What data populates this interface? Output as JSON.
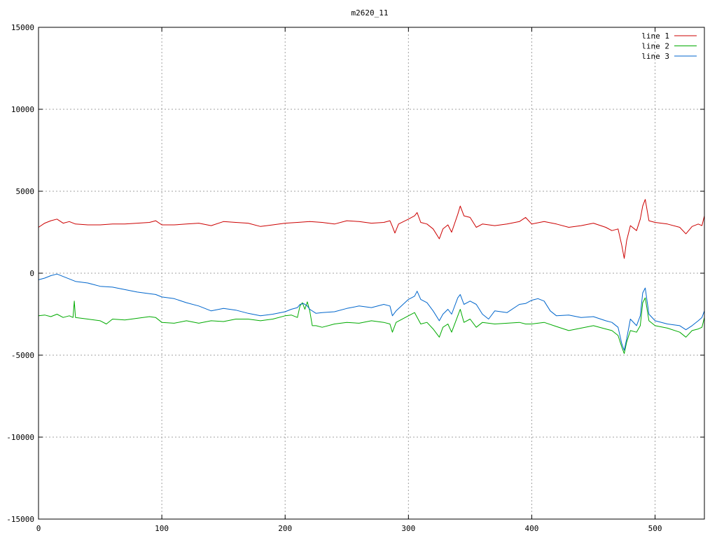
{
  "chart_data": {
    "type": "line",
    "title": "m2620_11",
    "xlabel": "",
    "ylabel": "",
    "xlim": [
      0,
      540
    ],
    "ylim": [
      -15000,
      15000
    ],
    "xticks": [
      0,
      100,
      200,
      300,
      400,
      500
    ],
    "yticks": [
      -15000,
      -10000,
      -5000,
      0,
      5000,
      10000,
      15000
    ],
    "grid": true,
    "legend_position": "top-right",
    "series": [
      {
        "name": "line 1",
        "color": "#cc0000",
        "points": [
          [
            0,
            2800
          ],
          [
            5,
            3050
          ],
          [
            10,
            3200
          ],
          [
            15,
            3300
          ],
          [
            20,
            3050
          ],
          [
            25,
            3150
          ],
          [
            30,
            3000
          ],
          [
            40,
            2950
          ],
          [
            50,
            2950
          ],
          [
            60,
            3000
          ],
          [
            70,
            3000
          ],
          [
            80,
            3050
          ],
          [
            90,
            3100
          ],
          [
            95,
            3200
          ],
          [
            100,
            2950
          ],
          [
            110,
            2950
          ],
          [
            120,
            3000
          ],
          [
            130,
            3050
          ],
          [
            140,
            2900
          ],
          [
            150,
            3150
          ],
          [
            160,
            3100
          ],
          [
            170,
            3050
          ],
          [
            180,
            2850
          ],
          [
            190,
            2950
          ],
          [
            200,
            3050
          ],
          [
            210,
            3100
          ],
          [
            220,
            3150
          ],
          [
            230,
            3100
          ],
          [
            240,
            3000
          ],
          [
            250,
            3200
          ],
          [
            260,
            3150
          ],
          [
            270,
            3050
          ],
          [
            280,
            3100
          ],
          [
            285,
            3200
          ],
          [
            287,
            2850
          ],
          [
            289,
            2450
          ],
          [
            292,
            3000
          ],
          [
            300,
            3300
          ],
          [
            305,
            3500
          ],
          [
            307,
            3700
          ],
          [
            310,
            3100
          ],
          [
            315,
            3000
          ],
          [
            320,
            2700
          ],
          [
            325,
            2100
          ],
          [
            328,
            2700
          ],
          [
            332,
            2950
          ],
          [
            335,
            2500
          ],
          [
            340,
            3600
          ],
          [
            342,
            4100
          ],
          [
            345,
            3500
          ],
          [
            350,
            3400
          ],
          [
            355,
            2800
          ],
          [
            360,
            3000
          ],
          [
            370,
            2900
          ],
          [
            380,
            3000
          ],
          [
            390,
            3150
          ],
          [
            395,
            3400
          ],
          [
            400,
            3000
          ],
          [
            410,
            3150
          ],
          [
            420,
            3000
          ],
          [
            430,
            2800
          ],
          [
            440,
            2900
          ],
          [
            450,
            3050
          ],
          [
            460,
            2800
          ],
          [
            465,
            2600
          ],
          [
            470,
            2700
          ],
          [
            473,
            1700
          ],
          [
            475,
            900
          ],
          [
            477,
            2000
          ],
          [
            480,
            2900
          ],
          [
            485,
            2600
          ],
          [
            488,
            3300
          ],
          [
            490,
            4100
          ],
          [
            492,
            4500
          ],
          [
            495,
            3200
          ],
          [
            500,
            3100
          ],
          [
            510,
            3000
          ],
          [
            520,
            2800
          ],
          [
            525,
            2400
          ],
          [
            530,
            2850
          ],
          [
            535,
            3000
          ],
          [
            538,
            2900
          ],
          [
            540,
            3500
          ]
        ]
      },
      {
        "name": "line 2",
        "color": "#00aa00",
        "points": [
          [
            0,
            -2600
          ],
          [
            5,
            -2550
          ],
          [
            10,
            -2650
          ],
          [
            15,
            -2500
          ],
          [
            20,
            -2700
          ],
          [
            25,
            -2600
          ],
          [
            28,
            -2700
          ],
          [
            29,
            -1700
          ],
          [
            30,
            -2700
          ],
          [
            40,
            -2800
          ],
          [
            50,
            -2900
          ],
          [
            55,
            -3100
          ],
          [
            60,
            -2800
          ],
          [
            70,
            -2850
          ],
          [
            80,
            -2750
          ],
          [
            90,
            -2650
          ],
          [
            95,
            -2700
          ],
          [
            100,
            -3000
          ],
          [
            110,
            -3050
          ],
          [
            120,
            -2900
          ],
          [
            130,
            -3050
          ],
          [
            140,
            -2900
          ],
          [
            150,
            -2950
          ],
          [
            160,
            -2800
          ],
          [
            170,
            -2800
          ],
          [
            180,
            -2900
          ],
          [
            190,
            -2800
          ],
          [
            200,
            -2600
          ],
          [
            205,
            -2550
          ],
          [
            210,
            -2700
          ],
          [
            212,
            -2000
          ],
          [
            214,
            -1800
          ],
          [
            216,
            -2200
          ],
          [
            218,
            -1750
          ],
          [
            220,
            -2300
          ],
          [
            222,
            -3200
          ],
          [
            225,
            -3200
          ],
          [
            230,
            -3300
          ],
          [
            240,
            -3100
          ],
          [
            250,
            -3000
          ],
          [
            260,
            -3050
          ],
          [
            270,
            -2900
          ],
          [
            280,
            -3000
          ],
          [
            285,
            -3100
          ],
          [
            287,
            -3600
          ],
          [
            290,
            -3000
          ],
          [
            300,
            -2600
          ],
          [
            305,
            -2400
          ],
          [
            310,
            -3100
          ],
          [
            315,
            -3000
          ],
          [
            320,
            -3400
          ],
          [
            325,
            -3900
          ],
          [
            328,
            -3300
          ],
          [
            332,
            -3100
          ],
          [
            335,
            -3600
          ],
          [
            340,
            -2600
          ],
          [
            342,
            -2200
          ],
          [
            345,
            -3000
          ],
          [
            350,
            -2800
          ],
          [
            355,
            -3300
          ],
          [
            360,
            -3000
          ],
          [
            370,
            -3100
          ],
          [
            380,
            -3050
          ],
          [
            390,
            -3000
          ],
          [
            395,
            -3100
          ],
          [
            400,
            -3100
          ],
          [
            410,
            -3000
          ],
          [
            420,
            -3250
          ],
          [
            430,
            -3500
          ],
          [
            440,
            -3350
          ],
          [
            450,
            -3200
          ],
          [
            460,
            -3400
          ],
          [
            465,
            -3500
          ],
          [
            470,
            -3800
          ],
          [
            473,
            -4500
          ],
          [
            475,
            -4900
          ],
          [
            477,
            -4200
          ],
          [
            480,
            -3500
          ],
          [
            485,
            -3600
          ],
          [
            488,
            -3200
          ],
          [
            490,
            -1800
          ],
          [
            492,
            -1500
          ],
          [
            495,
            -2900
          ],
          [
            500,
            -3200
          ],
          [
            510,
            -3350
          ],
          [
            520,
            -3600
          ],
          [
            525,
            -3900
          ],
          [
            530,
            -3500
          ],
          [
            535,
            -3400
          ],
          [
            538,
            -3300
          ],
          [
            540,
            -2700
          ]
        ]
      },
      {
        "name": "line 3",
        "color": "#0066cc",
        "points": [
          [
            0,
            -400
          ],
          [
            5,
            -300
          ],
          [
            10,
            -150
          ],
          [
            15,
            -50
          ],
          [
            20,
            -200
          ],
          [
            25,
            -350
          ],
          [
            30,
            -500
          ],
          [
            40,
            -600
          ],
          [
            50,
            -800
          ],
          [
            60,
            -850
          ],
          [
            70,
            -1000
          ],
          [
            80,
            -1150
          ],
          [
            90,
            -1250
          ],
          [
            95,
            -1300
          ],
          [
            100,
            -1450
          ],
          [
            110,
            -1550
          ],
          [
            120,
            -1800
          ],
          [
            130,
            -2000
          ],
          [
            140,
            -2300
          ],
          [
            150,
            -2150
          ],
          [
            160,
            -2250
          ],
          [
            170,
            -2450
          ],
          [
            180,
            -2600
          ],
          [
            190,
            -2500
          ],
          [
            200,
            -2350
          ],
          [
            205,
            -2200
          ],
          [
            210,
            -2100
          ],
          [
            212,
            -1900
          ],
          [
            215,
            -1850
          ],
          [
            218,
            -2000
          ],
          [
            220,
            -2200
          ],
          [
            225,
            -2450
          ],
          [
            230,
            -2400
          ],
          [
            240,
            -2350
          ],
          [
            250,
            -2150
          ],
          [
            260,
            -2000
          ],
          [
            270,
            -2100
          ],
          [
            280,
            -1900
          ],
          [
            285,
            -2000
          ],
          [
            287,
            -2600
          ],
          [
            290,
            -2300
          ],
          [
            300,
            -1600
          ],
          [
            305,
            -1400
          ],
          [
            307,
            -1100
          ],
          [
            310,
            -1600
          ],
          [
            315,
            -1800
          ],
          [
            320,
            -2300
          ],
          [
            325,
            -2900
          ],
          [
            328,
            -2500
          ],
          [
            332,
            -2200
          ],
          [
            335,
            -2500
          ],
          [
            340,
            -1500
          ],
          [
            342,
            -1300
          ],
          [
            345,
            -1900
          ],
          [
            350,
            -1700
          ],
          [
            355,
            -1900
          ],
          [
            360,
            -2500
          ],
          [
            365,
            -2800
          ],
          [
            370,
            -2300
          ],
          [
            380,
            -2400
          ],
          [
            390,
            -1900
          ],
          [
            395,
            -1850
          ],
          [
            400,
            -1650
          ],
          [
            405,
            -1550
          ],
          [
            410,
            -1700
          ],
          [
            415,
            -2300
          ],
          [
            420,
            -2600
          ],
          [
            430,
            -2550
          ],
          [
            440,
            -2700
          ],
          [
            450,
            -2650
          ],
          [
            460,
            -2900
          ],
          [
            465,
            -3000
          ],
          [
            470,
            -3300
          ],
          [
            473,
            -4300
          ],
          [
            475,
            -4700
          ],
          [
            477,
            -4000
          ],
          [
            480,
            -2800
          ],
          [
            485,
            -3200
          ],
          [
            488,
            -2600
          ],
          [
            490,
            -1200
          ],
          [
            492,
            -900
          ],
          [
            495,
            -2500
          ],
          [
            500,
            -2900
          ],
          [
            510,
            -3100
          ],
          [
            520,
            -3200
          ],
          [
            525,
            -3450
          ],
          [
            530,
            -3200
          ],
          [
            535,
            -2900
          ],
          [
            538,
            -2700
          ],
          [
            540,
            -2300
          ]
        ]
      }
    ]
  }
}
